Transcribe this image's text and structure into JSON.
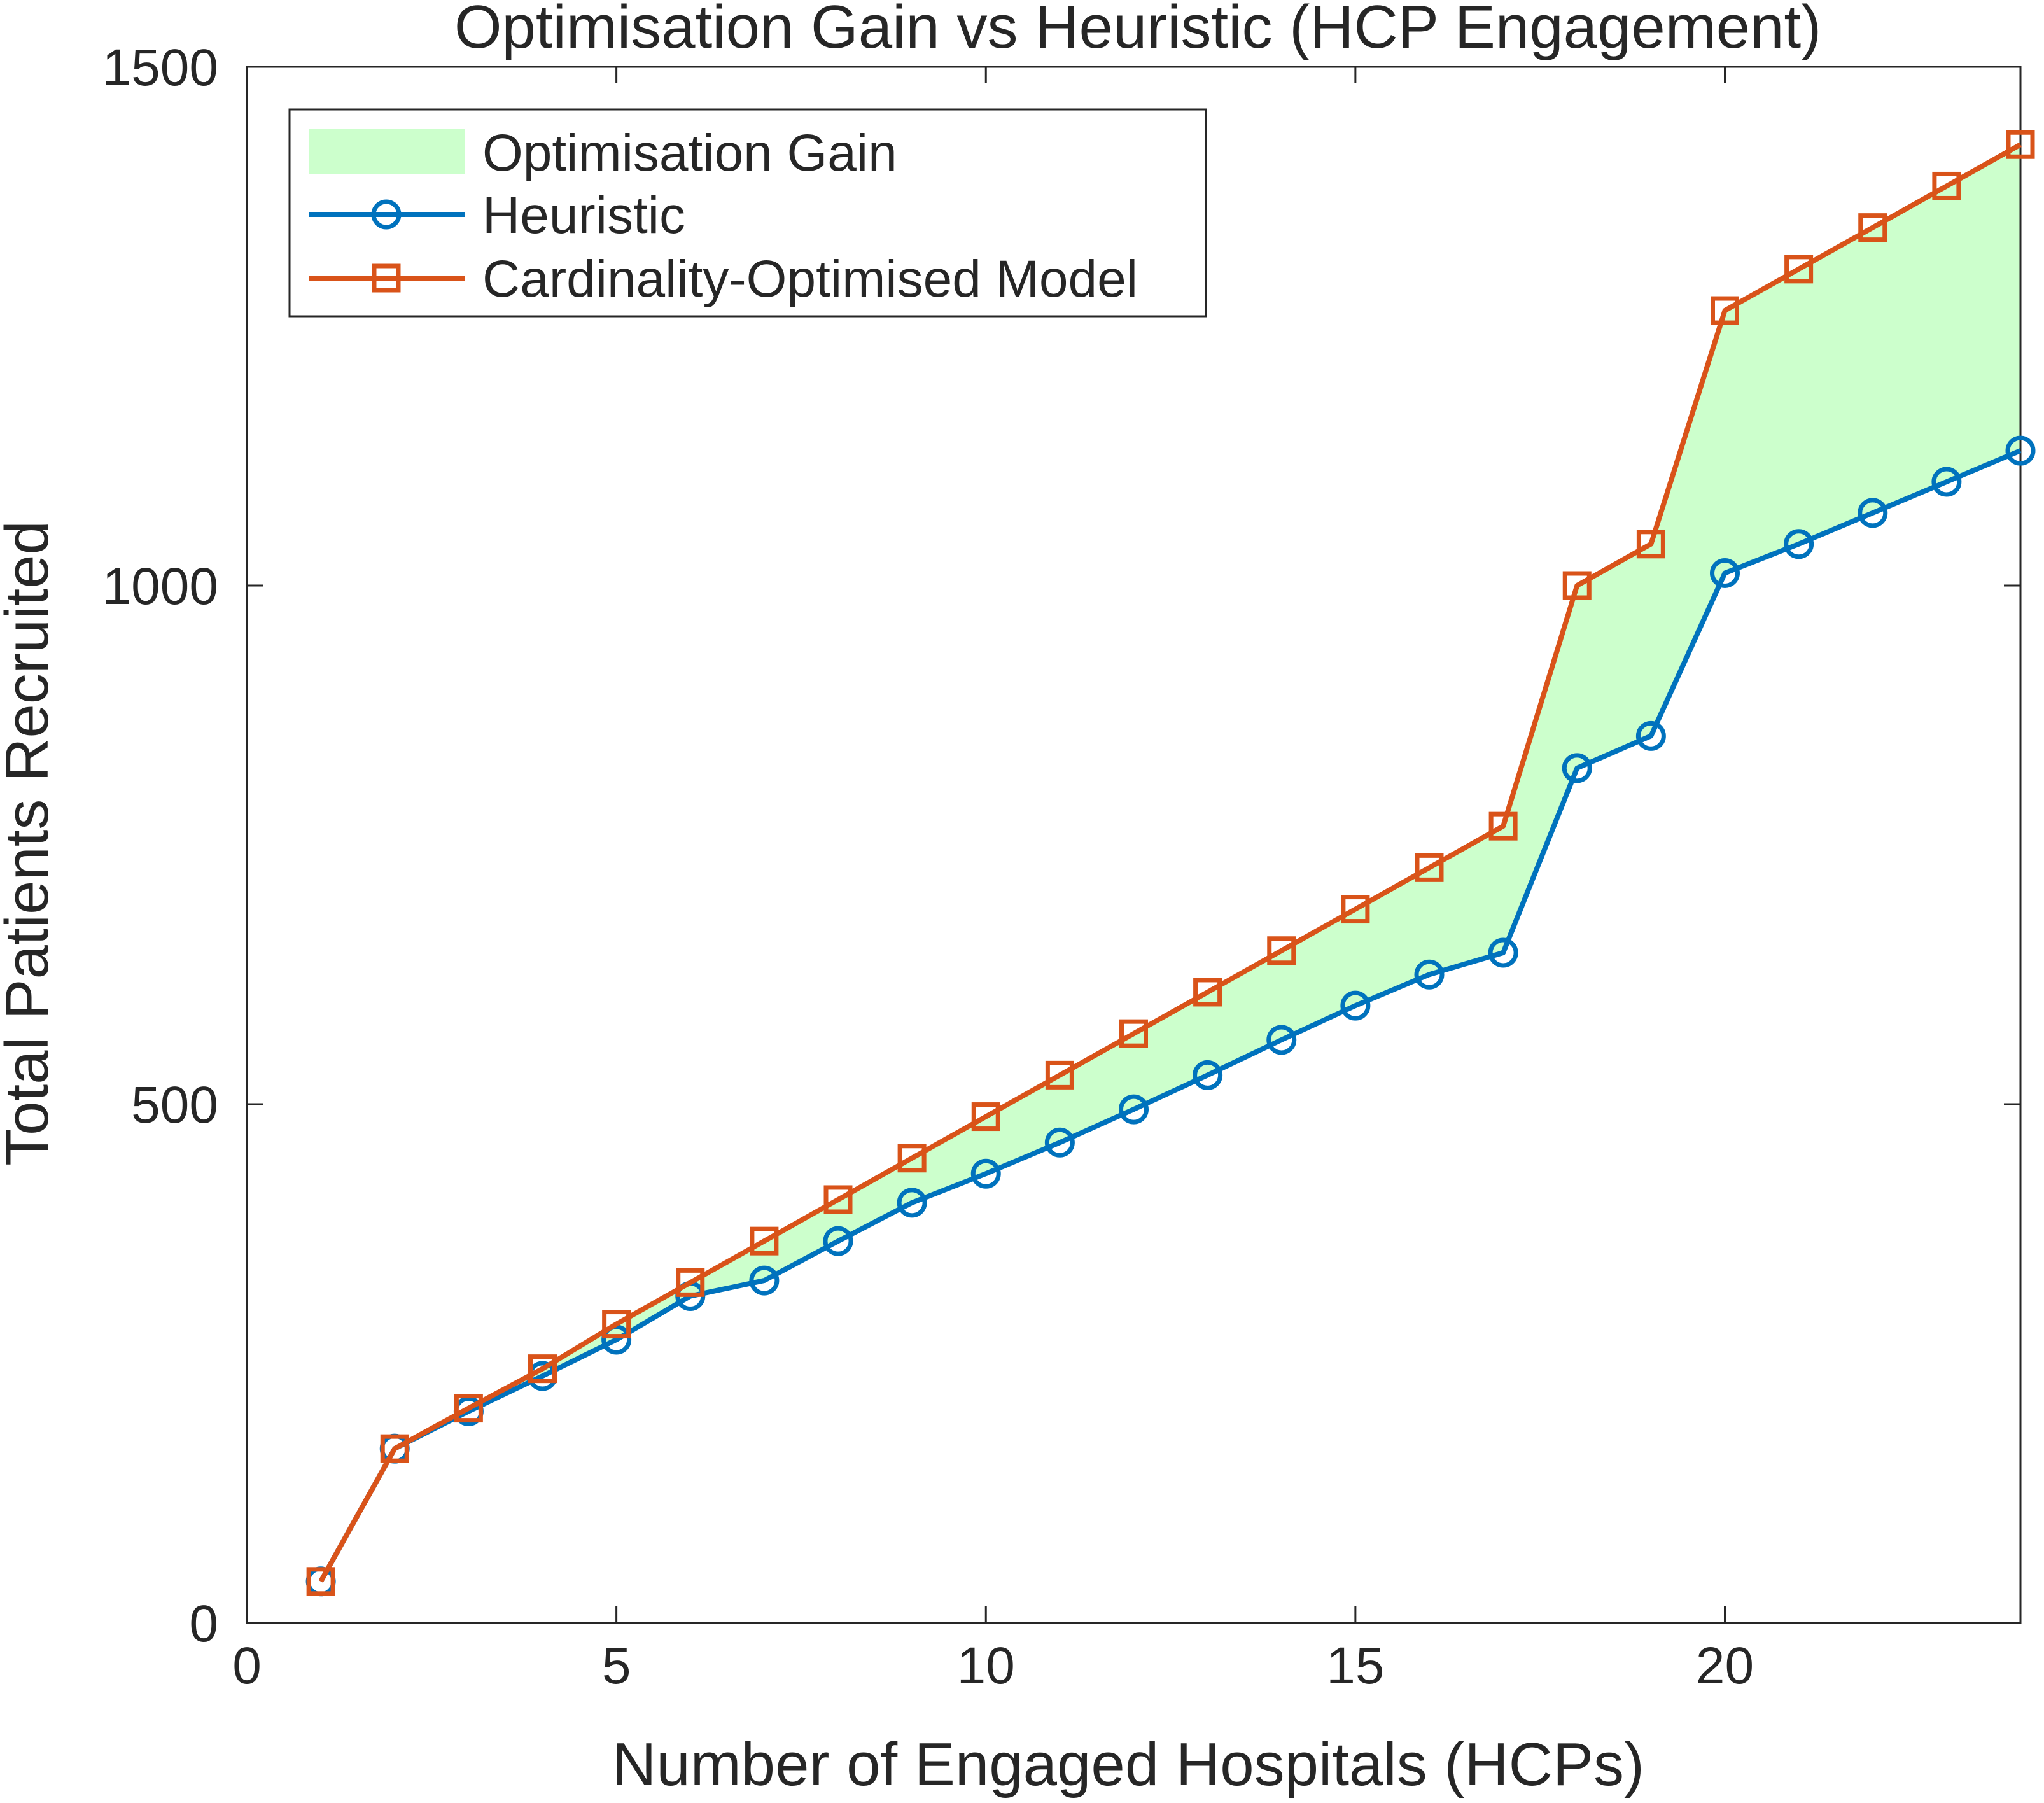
{
  "chart_data": {
    "type": "line",
    "title": "Optimisation Gain vs Heuristic (HCP Engagement)",
    "xlabel": "Number of Engaged Hospitals (HCPs)",
    "ylabel": "Total Patients Recruited",
    "xlim": [
      0,
      24
    ],
    "ylim": [
      0,
      1500
    ],
    "x_ticks": [
      0,
      5,
      10,
      15,
      20
    ],
    "y_ticks": [
      0,
      500,
      1000,
      1500
    ],
    "x_tick_labels": [
      "0",
      "5",
      "10",
      "15",
      "20"
    ],
    "y_tick_labels": [
      "0",
      "500",
      "1000",
      "1500"
    ],
    "grid": false,
    "legend_position": "top-left",
    "x": [
      1,
      2,
      3,
      4,
      5,
      6,
      7,
      8,
      9,
      10,
      11,
      12,
      13,
      14,
      15,
      16,
      17,
      18,
      19,
      20,
      21,
      22,
      23,
      24
    ],
    "series": [
      {
        "name": "Heuristic",
        "color": "#0072BD",
        "marker": "circle",
        "values": [
          40,
          168,
          204,
          238,
          273,
          315,
          330,
          368,
          405,
          433,
          463,
          495,
          528,
          562,
          595,
          625,
          646,
          824,
          855,
          1012,
          1040,
          1070,
          1100,
          1130
        ]
      },
      {
        "name": "Cardinality-Optimised Model",
        "color": "#D95319",
        "marker": "square",
        "values": [
          40,
          168,
          207,
          245,
          288,
          328,
          368,
          408,
          448,
          488,
          528,
          568,
          608,
          648,
          688,
          728,
          768,
          1000,
          1040,
          1265,
          1305,
          1345,
          1385,
          1425
        ]
      }
    ],
    "fill": {
      "name": "Optimisation Gain",
      "between": [
        "Heuristic",
        "Cardinality-Optimised Model"
      ],
      "color": "#CCFFCC"
    }
  }
}
